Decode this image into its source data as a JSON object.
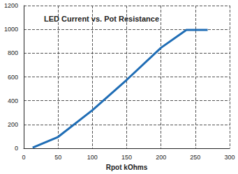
{
  "chart_data": {
    "type": "line",
    "title": "LED Current vs. Pot Resistance",
    "xlabel": "Rpot kOhms",
    "x": [
      13,
      50,
      100,
      150,
      200,
      237,
      268
    ],
    "values": [
      5,
      95,
      320,
      575,
      845,
      995,
      995
    ],
    "color": "#1f6db5",
    "marker": "none",
    "line_style": "solid",
    "xlim": [
      0,
      300
    ],
    "xticks": [
      0,
      50,
      100,
      150,
      200,
      250,
      300
    ],
    "ylim": [
      0,
      1200
    ],
    "yticks": [
      0,
      200,
      400,
      600,
      800,
      1000,
      1200
    ],
    "grid": true
  }
}
